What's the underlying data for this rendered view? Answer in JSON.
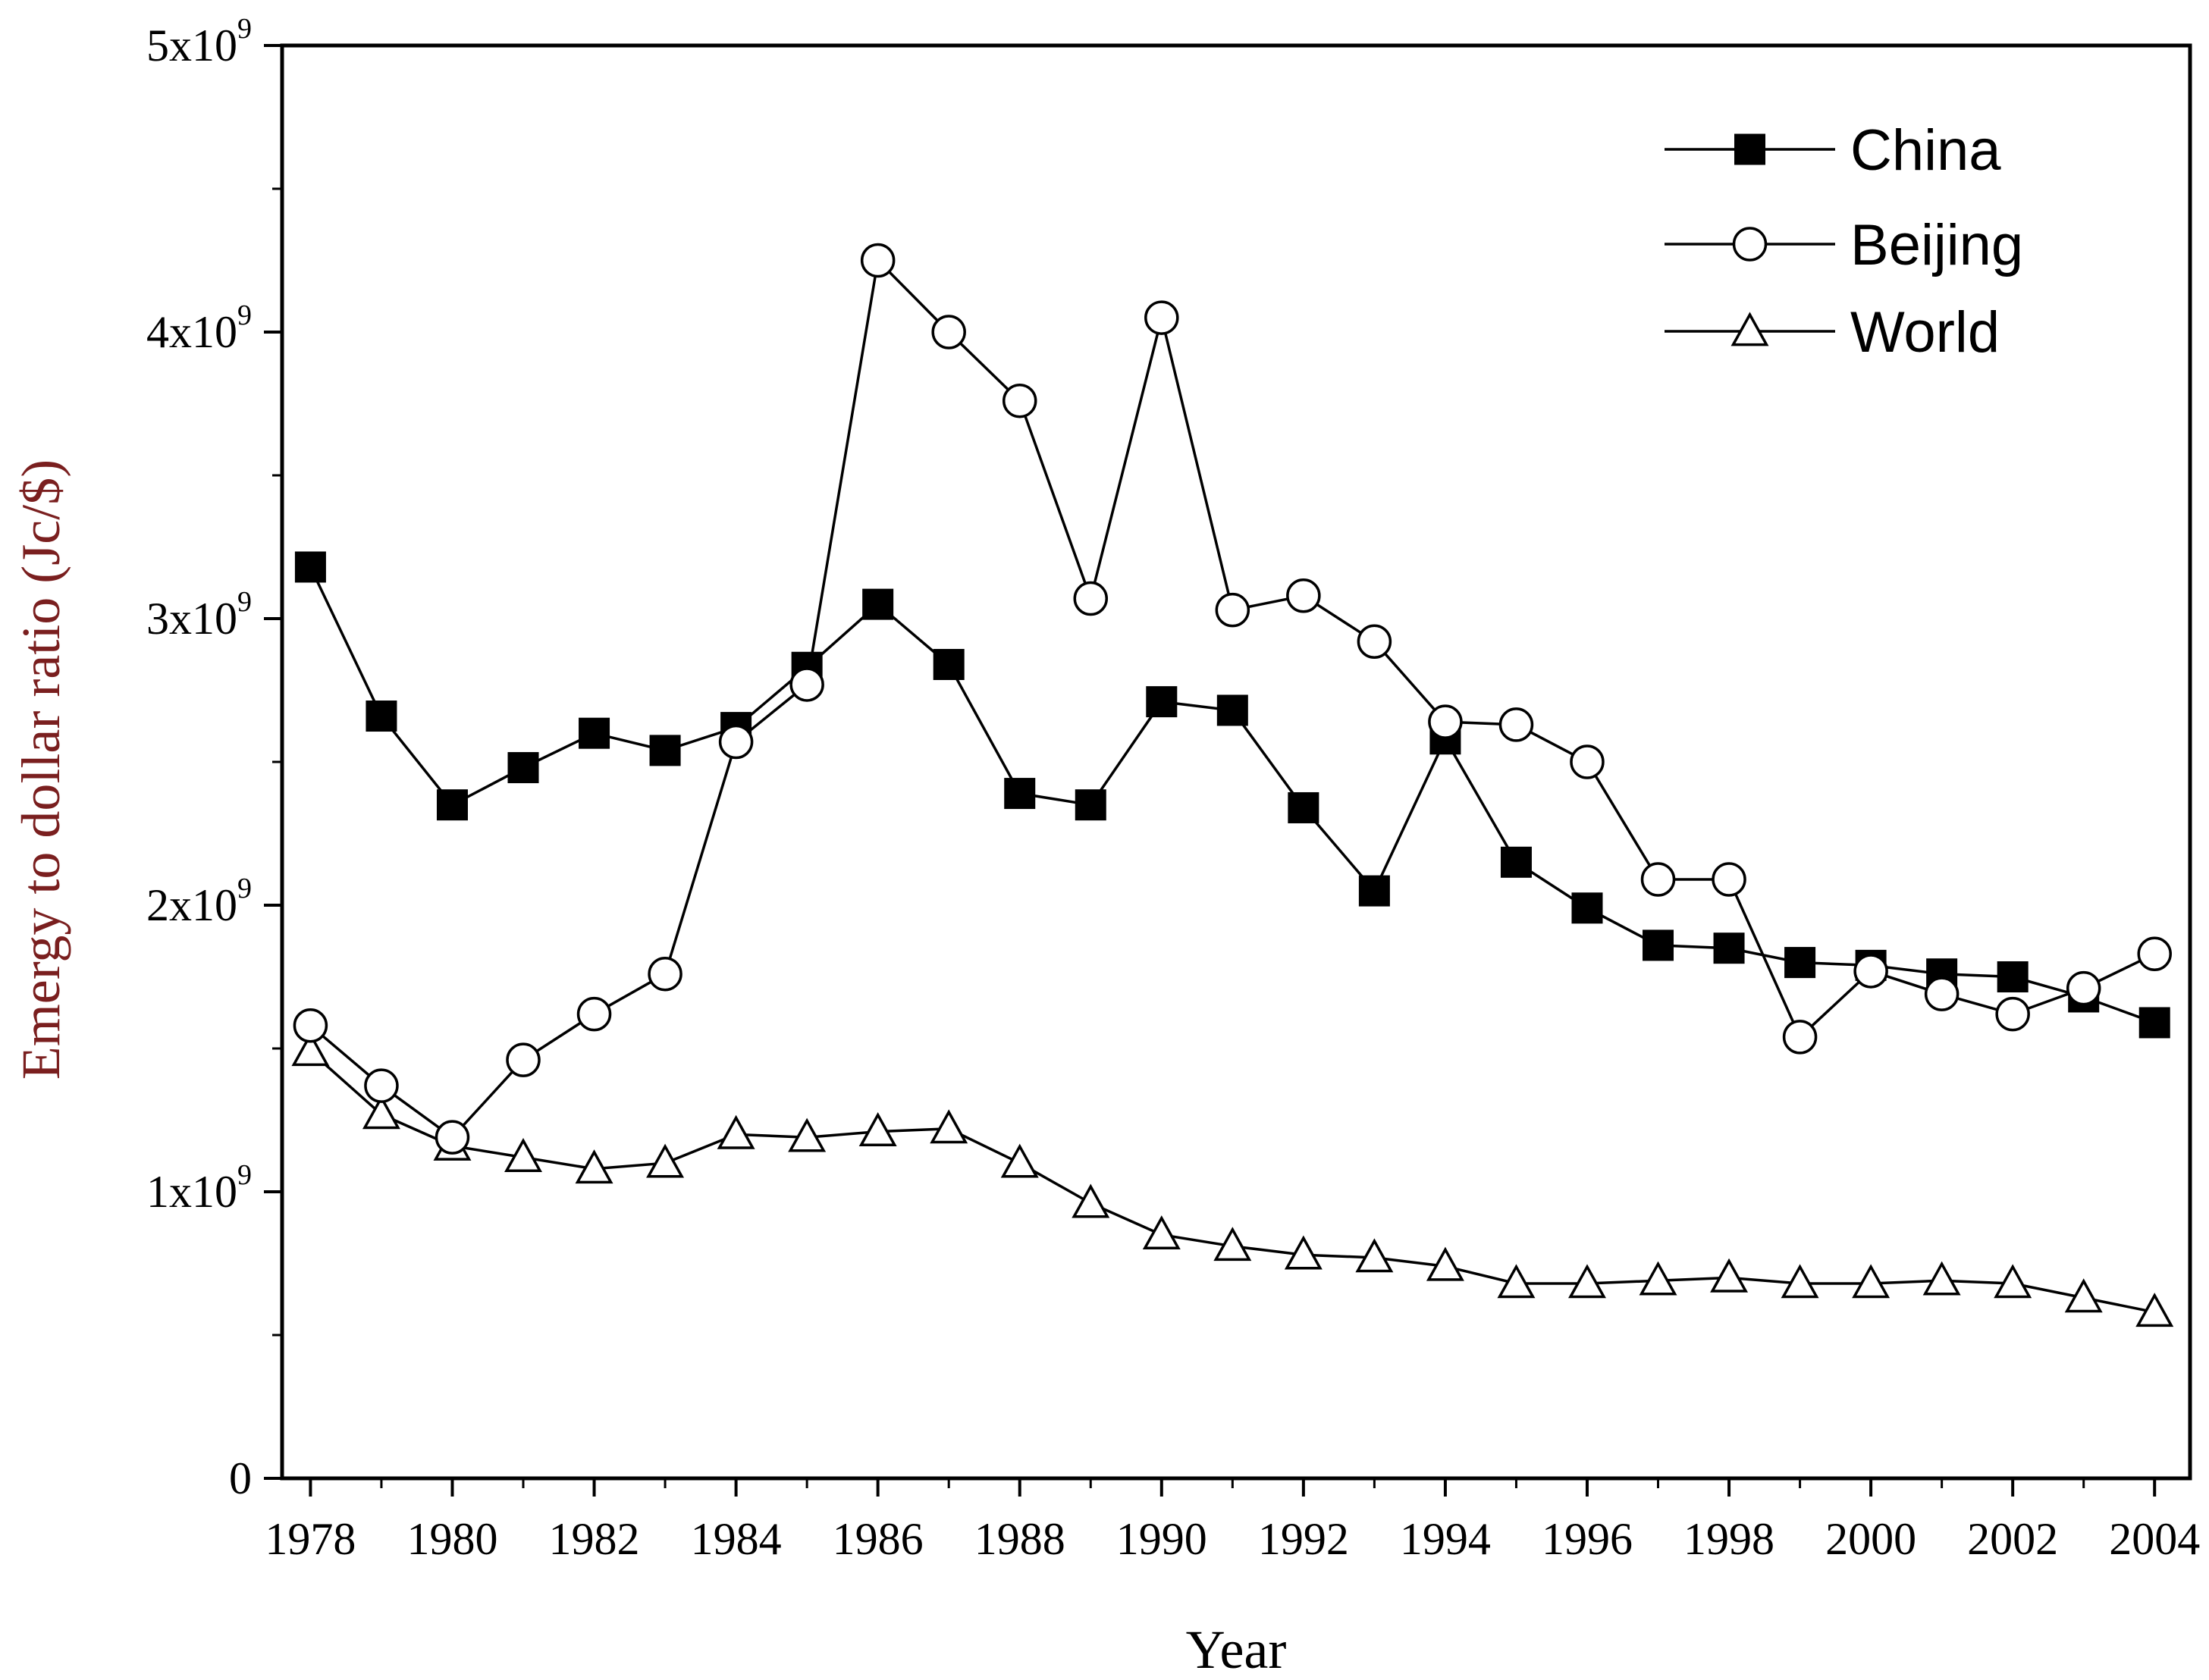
{
  "chart_data": {
    "type": "line",
    "title": "",
    "xlabel": "Year",
    "ylabel": "Emergy to dollar ratio (Jc/$)",
    "ylabel_color": "#7a1f1f",
    "xlim": [
      1977.6,
      2004.5
    ],
    "ylim": [
      0,
      5000000000
    ],
    "x": [
      1978,
      1979,
      1980,
      1981,
      1982,
      1983,
      1984,
      1985,
      1986,
      1987,
      1988,
      1989,
      1990,
      1991,
      1992,
      1993,
      1994,
      1995,
      1996,
      1997,
      1998,
      1999,
      2000,
      2001,
      2002,
      2003,
      2004
    ],
    "xticks": [
      1978,
      1980,
      1982,
      1984,
      1986,
      1988,
      1990,
      1992,
      1994,
      1996,
      1998,
      2000,
      2002,
      2004
    ],
    "xtick_labels": [
      "1978",
      "1980",
      "1982",
      "1984",
      "1986",
      "1988",
      "1990",
      "1992",
      "1994",
      "1996",
      "1998",
      "2000",
      "2002",
      "2004"
    ],
    "yticks": [
      0,
      1000000000,
      2000000000,
      3000000000,
      4000000000,
      5000000000
    ],
    "ytick_labels": [
      {
        "base": "0",
        "exp": ""
      },
      {
        "base": "1x10",
        "exp": "9"
      },
      {
        "base": "2x10",
        "exp": "9"
      },
      {
        "base": "3x10",
        "exp": "9"
      },
      {
        "base": "4x10",
        "exp": "9"
      },
      {
        "base": "5x10",
        "exp": "9"
      }
    ],
    "legend_position": "top-right",
    "series": [
      {
        "name": "China",
        "marker": "filled-square",
        "values": [
          3180000000,
          2660000000,
          2350000000,
          2480000000,
          2600000000,
          2540000000,
          2620000000,
          2830000000,
          3050000000,
          2840000000,
          2390000000,
          2350000000,
          2710000000,
          2680000000,
          2340000000,
          2050000000,
          2580000000,
          2150000000,
          1990000000,
          1860000000,
          1850000000,
          1800000000,
          1790000000,
          1760000000,
          1750000000,
          1680000000,
          1590000000
        ]
      },
      {
        "name": "Beijing",
        "marker": "open-circle",
        "values": [
          1580000000,
          1370000000,
          1190000000,
          1460000000,
          1620000000,
          1760000000,
          2570000000,
          2770000000,
          4250000000,
          4000000000,
          3760000000,
          3070000000,
          4050000000,
          3030000000,
          3080000000,
          2920000000,
          2640000000,
          2630000000,
          2500000000,
          2090000000,
          2090000000,
          1540000000,
          1770000000,
          1690000000,
          1620000000,
          1710000000,
          1830000000
        ]
      },
      {
        "name": "World",
        "marker": "open-triangle",
        "values": [
          1490000000,
          1270000000,
          1160000000,
          1120000000,
          1080000000,
          1100000000,
          1200000000,
          1190000000,
          1210000000,
          1220000000,
          1100000000,
          960000000,
          850000000,
          810000000,
          780000000,
          770000000,
          740000000,
          680000000,
          680000000,
          690000000,
          700000000,
          680000000,
          680000000,
          690000000,
          680000000,
          630000000,
          580000000
        ]
      }
    ]
  }
}
